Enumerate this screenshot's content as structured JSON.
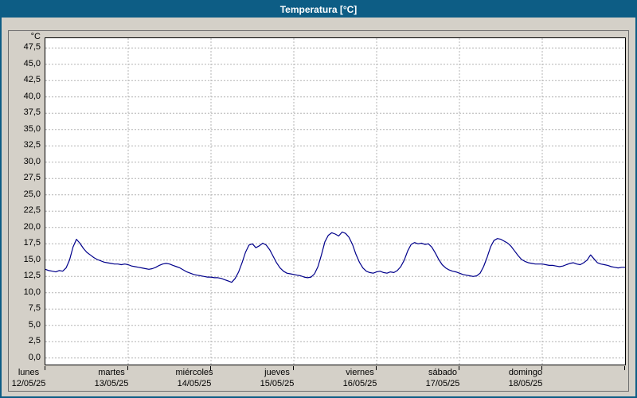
{
  "window": {
    "title": "Temperatura [°C]"
  },
  "chart_data": {
    "type": "line",
    "title": "Temperatura [°C]",
    "xlabel": "",
    "ylabel": "°C",
    "ylim": [
      0,
      50
    ],
    "axis_ylim": [
      -1,
      49
    ],
    "grid": true,
    "legend": "none",
    "line_color": "#00008b",
    "yticks": [
      {
        "value": 0,
        "label": "0,0"
      },
      {
        "value": 2.5,
        "label": "2,5"
      },
      {
        "value": 5,
        "label": "5,0"
      },
      {
        "value": 7.5,
        "label": "7,5"
      },
      {
        "value": 10,
        "label": "10,0"
      },
      {
        "value": 12.5,
        "label": "12,5"
      },
      {
        "value": 15,
        "label": "15,0"
      },
      {
        "value": 17.5,
        "label": "17,5"
      },
      {
        "value": 20,
        "label": "20,0"
      },
      {
        "value": 22.5,
        "label": "22,5"
      },
      {
        "value": 25,
        "label": "25,0"
      },
      {
        "value": 27.5,
        "label": "27,5"
      },
      {
        "value": 30,
        "label": "30,0"
      },
      {
        "value": 32.5,
        "label": "32,5"
      },
      {
        "value": 35,
        "label": "35,0"
      },
      {
        "value": 37.5,
        "label": "37,5"
      },
      {
        "value": 40,
        "label": "40,0"
      },
      {
        "value": 42.5,
        "label": "42,5"
      },
      {
        "value": 45,
        "label": "45,0"
      },
      {
        "value": 47.5,
        "label": "47,5"
      }
    ],
    "days": [
      {
        "name": "lunes",
        "date": "12/05/25"
      },
      {
        "name": "martes",
        "date": "13/05/25"
      },
      {
        "name": "miércoles",
        "date": "14/05/25"
      },
      {
        "name": "jueves",
        "date": "15/05/25"
      },
      {
        "name": "viernes",
        "date": "16/05/25"
      },
      {
        "name": "sábado",
        "date": "17/05/25"
      },
      {
        "name": "domingo",
        "date": "18/05/25"
      }
    ],
    "series": [
      {
        "name": "Temperatura",
        "unit": "°C",
        "interval": "hourly",
        "color": "#00008b",
        "values": [
          13.6,
          13.4,
          13.3,
          13.2,
          13.4,
          13.3,
          13.8,
          15.0,
          17.0,
          18.2,
          17.6,
          16.8,
          16.2,
          15.8,
          15.4,
          15.1,
          14.9,
          14.7,
          14.6,
          14.5,
          14.4,
          14.4,
          14.3,
          14.4,
          14.3,
          14.1,
          14.0,
          13.9,
          13.8,
          13.7,
          13.6,
          13.7,
          13.9,
          14.2,
          14.4,
          14.5,
          14.4,
          14.2,
          14.0,
          13.8,
          13.5,
          13.2,
          13.0,
          12.8,
          12.7,
          12.6,
          12.5,
          12.4,
          12.4,
          12.3,
          12.3,
          12.2,
          12.0,
          11.8,
          11.6,
          12.2,
          13.2,
          14.6,
          16.2,
          17.3,
          17.5,
          16.9,
          17.2,
          17.6,
          17.3,
          16.6,
          15.6,
          14.6,
          13.8,
          13.3,
          13.0,
          12.9,
          12.8,
          12.7,
          12.6,
          12.4,
          12.3,
          12.4,
          12.9,
          14.0,
          15.8,
          17.8,
          18.8,
          19.2,
          19.0,
          18.7,
          19.3,
          19.1,
          18.5,
          17.4,
          15.9,
          14.7,
          13.8,
          13.3,
          13.1,
          13.0,
          13.2,
          13.3,
          13.1,
          13.0,
          13.2,
          13.1,
          13.4,
          14.0,
          15.0,
          16.4,
          17.4,
          17.7,
          17.5,
          17.6,
          17.4,
          17.5,
          17.0,
          16.1,
          15.1,
          14.3,
          13.8,
          13.5,
          13.3,
          13.2,
          13.0,
          12.8,
          12.7,
          12.6,
          12.5,
          12.6,
          13.0,
          14.0,
          15.4,
          17.0,
          18.0,
          18.3,
          18.2,
          17.9,
          17.6,
          17.1,
          16.4,
          15.7,
          15.1,
          14.8,
          14.6,
          14.5,
          14.4,
          14.4,
          14.4,
          14.3,
          14.2,
          14.2,
          14.1,
          14.0,
          14.1,
          14.3,
          14.5,
          14.6,
          14.4,
          14.3,
          14.6,
          15.0,
          15.8,
          15.2,
          14.6,
          14.4,
          14.3,
          14.2,
          14.0,
          13.9,
          13.8,
          13.9,
          13.9
        ]
      }
    ]
  }
}
